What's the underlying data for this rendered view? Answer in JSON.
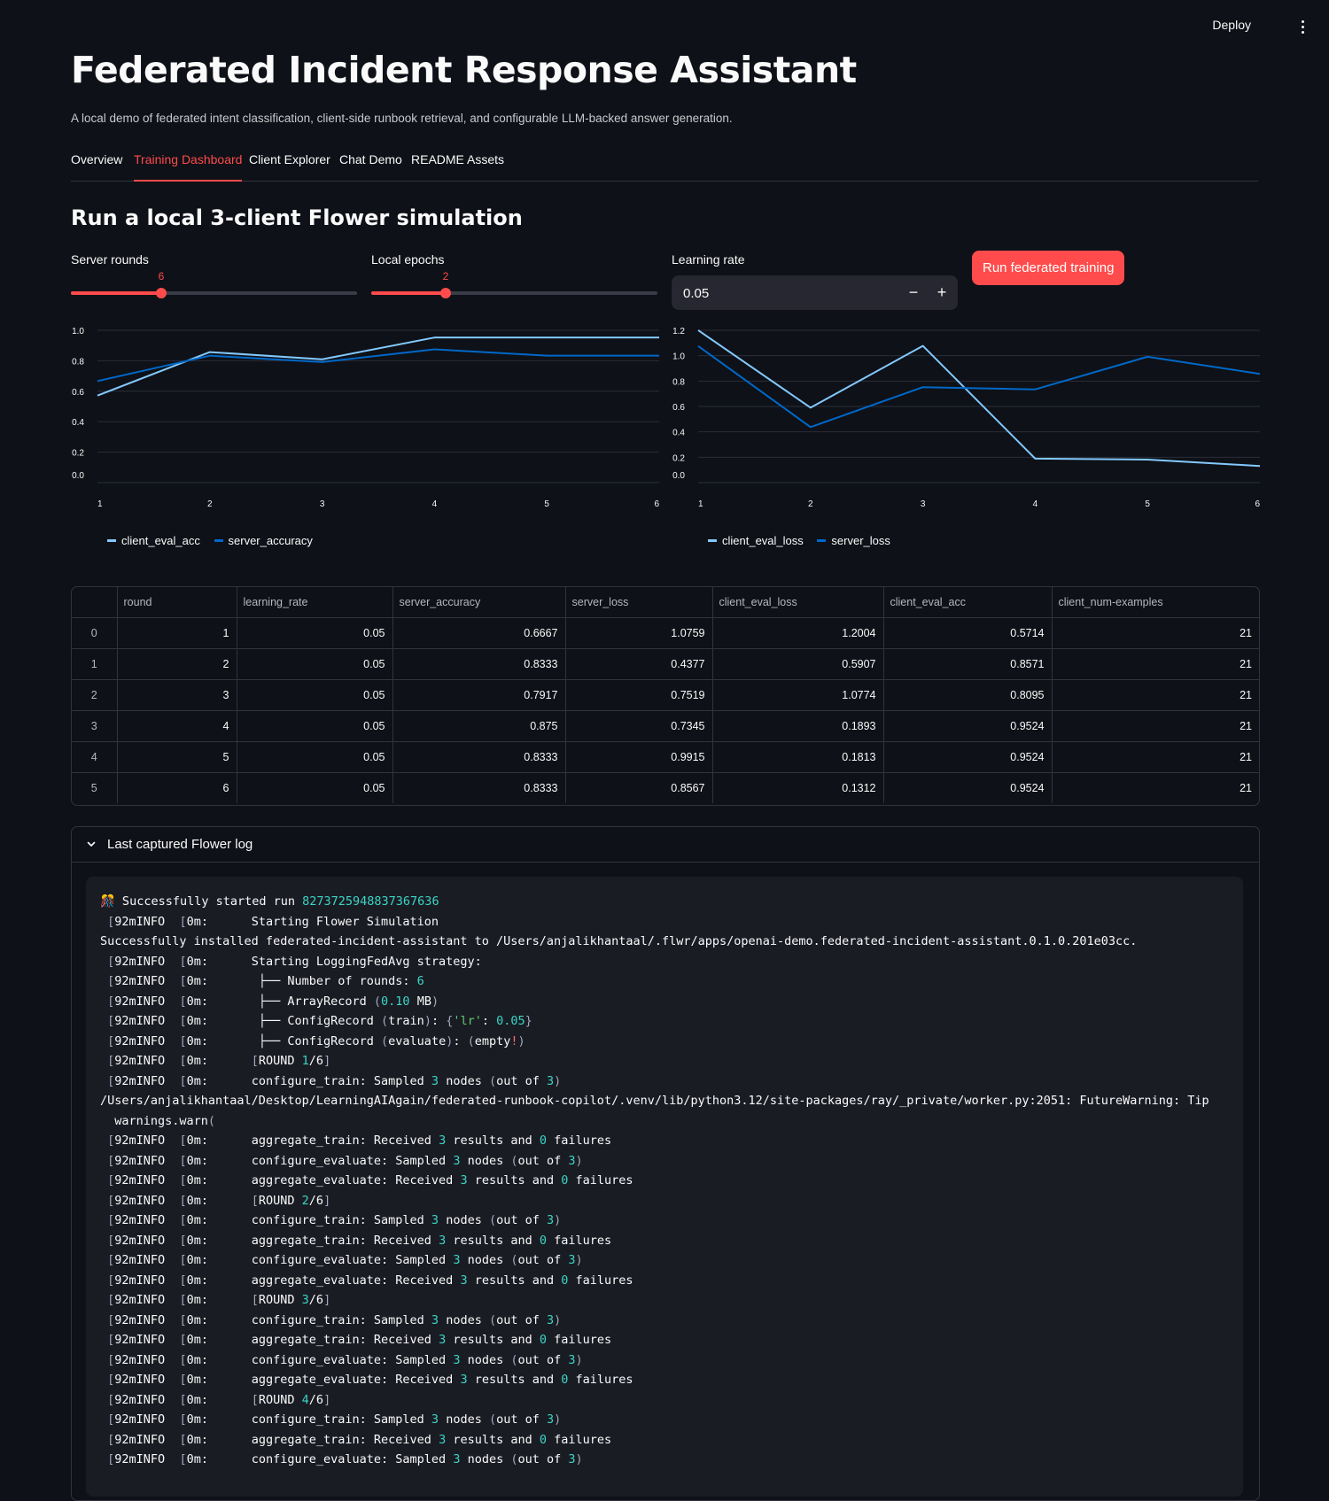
{
  "header": {
    "deploy_label": "Deploy"
  },
  "page": {
    "title": "Federated Incident Response Assistant",
    "subtitle": "A local demo of federated intent classification, client-side runbook retrieval, and configurable LLM-backed answer generation."
  },
  "tabs": [
    {
      "label": "Overview"
    },
    {
      "label": "Training Dashboard",
      "active": true
    },
    {
      "label": "Client Explorer"
    },
    {
      "label": "Chat Demo"
    },
    {
      "label": "README Assets"
    }
  ],
  "section": {
    "title": "Run a local 3-client Flower simulation"
  },
  "controls": {
    "server_rounds": {
      "label": "Server rounds",
      "value": "6",
      "min": 1,
      "max": 20
    },
    "local_epochs": {
      "label": "Local epochs",
      "value": "2",
      "min": 1,
      "max": 5
    },
    "learning_rate": {
      "label": "Learning rate",
      "value": "0.05",
      "minus": "−",
      "plus": "+"
    },
    "run_button": "Run federated training"
  },
  "accent_color": "#ff4b4b",
  "chart_data": [
    {
      "type": "line",
      "x": [
        1,
        2,
        3,
        4,
        5,
        6
      ],
      "ylim": [
        0,
        1.0
      ],
      "yticks": [
        "1.0",
        "0.8",
        "0.6",
        "0.4",
        "0.2",
        "0.0"
      ],
      "grid": true,
      "legend_position": "bottom-left",
      "series": [
        {
          "name": "client_eval_acc",
          "color": "#83c9ff",
          "values": [
            0.5714,
            0.8571,
            0.8095,
            0.9524,
            0.9524,
            0.9524
          ]
        },
        {
          "name": "server_accuracy",
          "color": "#0068c9",
          "values": [
            0.6667,
            0.8333,
            0.7917,
            0.875,
            0.8333,
            0.8333
          ]
        }
      ]
    },
    {
      "type": "line",
      "x": [
        1,
        2,
        3,
        4,
        5,
        6
      ],
      "ylim": [
        0,
        1.2
      ],
      "yticks": [
        "1.2",
        "1.0",
        "0.8",
        "0.6",
        "0.4",
        "0.2",
        "0.0"
      ],
      "grid": true,
      "legend_position": "bottom-left",
      "series": [
        {
          "name": "client_eval_loss",
          "color": "#83c9ff",
          "values": [
            1.2004,
            0.5907,
            1.0774,
            0.1893,
            0.1813,
            0.1312
          ]
        },
        {
          "name": "server_loss",
          "color": "#0068c9",
          "values": [
            1.0759,
            0.4377,
            0.7519,
            0.7345,
            0.9915,
            0.8567
          ]
        }
      ]
    }
  ],
  "table": {
    "columns": [
      "",
      "round",
      "learning_rate",
      "server_accuracy",
      "server_loss",
      "client_eval_loss",
      "client_eval_acc",
      "client_num-examples"
    ],
    "rows": [
      [
        "0",
        "1",
        "0.05",
        "0.6667",
        "1.0759",
        "1.2004",
        "0.5714",
        "21"
      ],
      [
        "1",
        "2",
        "0.05",
        "0.8333",
        "0.4377",
        "0.5907",
        "0.8571",
        "21"
      ],
      [
        "2",
        "3",
        "0.05",
        "0.7917",
        "0.7519",
        "1.0774",
        "0.8095",
        "21"
      ],
      [
        "3",
        "4",
        "0.05",
        "0.875",
        "0.7345",
        "0.1893",
        "0.9524",
        "21"
      ],
      [
        "4",
        "5",
        "0.05",
        "0.8333",
        "0.9915",
        "0.1813",
        "0.9524",
        "21"
      ],
      [
        "5",
        "6",
        "0.05",
        "0.8333",
        "0.8567",
        "0.1312",
        "0.9524",
        "21"
      ]
    ]
  },
  "log": {
    "title": "Last captured Flower log",
    "lines": [
      "🎊 Successfully started run 8273725948837367636",
      " [92mINFO  [0m:      Starting Flower Simulation",
      "Successfully installed federated-incident-assistant to /Users/anjalikhantaal/.flwr/apps/openai-demo.federated-incident-assistant.0.1.0.201e03cc.",
      " [92mINFO  [0m:      Starting LoggingFedAvg strategy:",
      " [92mINFO  [0m:       ├── Number of rounds: 6",
      " [92mINFO  [0m:       ├── ArrayRecord (0.10 MB)",
      " [92mINFO  [0m:       ├── ConfigRecord (train): {'lr': 0.05}",
      " [92mINFO  [0m:       ├── ConfigRecord (evaluate): (empty!)",
      " [92mINFO  [0m:      [ROUND 1/6]",
      " [92mINFO  [0m:      configure_train: Sampled 3 nodes (out of 3)",
      "/Users/anjalikhantaal/Desktop/LearningAIAgain/federated-runbook-copilot/.venv/lib/python3.12/site-packages/ray/_private/worker.py:2051: FutureWarning: Tip",
      "  warnings.warn(",
      " [92mINFO  [0m:      aggregate_train: Received 3 results and 0 failures",
      " [92mINFO  [0m:      configure_evaluate: Sampled 3 nodes (out of 3)",
      " [92mINFO  [0m:      aggregate_evaluate: Received 3 results and 0 failures",
      " [92mINFO  [0m:      [ROUND 2/6]",
      " [92mINFO  [0m:      configure_train: Sampled 3 nodes (out of 3)",
      " [92mINFO  [0m:      aggregate_train: Received 3 results and 0 failures",
      " [92mINFO  [0m:      configure_evaluate: Sampled 3 nodes (out of 3)",
      " [92mINFO  [0m:      aggregate_evaluate: Received 3 results and 0 failures",
      " [92mINFO  [0m:      [ROUND 3/6]",
      " [92mINFO  [0m:      configure_train: Sampled 3 nodes (out of 3)",
      " [92mINFO  [0m:      aggregate_train: Received 3 results and 0 failures",
      " [92mINFO  [0m:      configure_evaluate: Sampled 3 nodes (out of 3)",
      " [92mINFO  [0m:      aggregate_evaluate: Received 3 results and 0 failures",
      " [92mINFO  [0m:      [ROUND 4/6]",
      " [92mINFO  [0m:      configure_train: Sampled 3 nodes (out of 3)",
      " [92mINFO  [0m:      aggregate_train: Received 3 results and 0 failures",
      " [92mINFO  [0m:      configure_evaluate: Sampled 3 nodes (out of 3)"
    ]
  }
}
